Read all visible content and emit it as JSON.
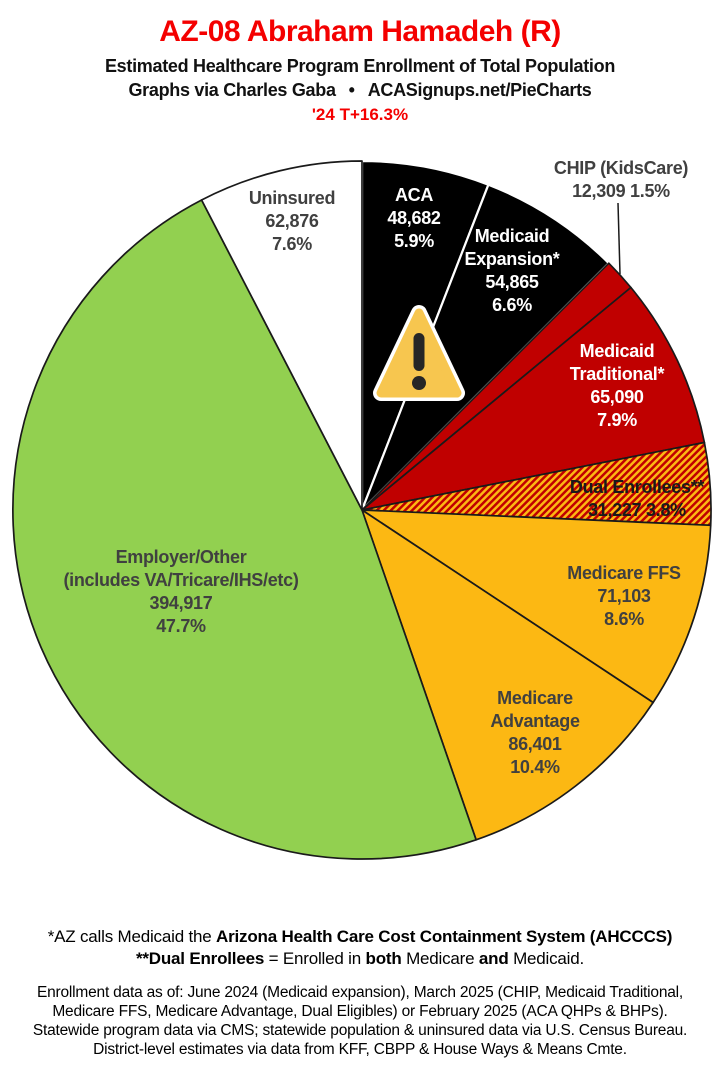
{
  "header": {
    "title": "AZ-08 Abraham Hamadeh (R)",
    "subtitle": "Estimated Healthcare Program Enrollment of Total Population",
    "credit_left": "Graphs via Charles Gaba",
    "credit_bullet": "•",
    "credit_right": "ACASignups.net/PieCharts",
    "change_note": "'24 T+16.3%"
  },
  "chart_data": {
    "type": "pie",
    "title": "Estimated Healthcare Program Enrollment of Total Population",
    "district": "AZ-08",
    "representative": "Abraham Hamadeh (R)",
    "start_angle_deg": 0,
    "direction": "clockwise",
    "hatch_colors": {
      "base": "#FCB813",
      "stripe": "#C00000"
    },
    "slices": [
      {
        "name": "aca",
        "label": "ACA",
        "value": 48682,
        "pct": 5.9,
        "fill": "#000000",
        "stroke": "#ffffff"
      },
      {
        "name": "medicaid-expansion",
        "label": "Medicaid Expansion*",
        "value": 54865,
        "pct": 6.6,
        "fill": "#000000",
        "stroke": "#ffffff"
      },
      {
        "name": "chip-kidscare",
        "label": "CHIP (KidsCare)",
        "value": 12309,
        "pct": 1.5,
        "fill": "#C00000",
        "stroke": "#1a1a1a"
      },
      {
        "name": "medicaid-traditional",
        "label": "Medicaid Traditional*",
        "value": 65090,
        "pct": 7.9,
        "fill": "#C00000",
        "stroke": "#1a1a1a"
      },
      {
        "name": "dual-enrollees",
        "label": "Dual Enrollees**",
        "value": 31227,
        "pct": 3.8,
        "fill": "hatch",
        "stroke": "#1a1a1a"
      },
      {
        "name": "medicare-ffs",
        "label": "Medicare FFS",
        "value": 71103,
        "pct": 8.6,
        "fill": "#FCB813",
        "stroke": "#1a1a1a"
      },
      {
        "name": "medicare-advantage",
        "label": "Medicare Advantage",
        "value": 86401,
        "pct": 10.4,
        "fill": "#FCB813",
        "stroke": "#1a1a1a"
      },
      {
        "name": "employer-other",
        "label": "Employer/Other (includes VA/Tricare/IHS/etc)",
        "value": 394917,
        "pct": 47.7,
        "fill": "#92D050",
        "stroke": "#1a1a1a"
      },
      {
        "name": "uninsured",
        "label": "Uninsured",
        "value": 62876,
        "pct": 7.6,
        "fill": "#FFFFFF",
        "stroke": "#1a1a1a"
      }
    ]
  },
  "labels": {
    "uninsured": {
      "lines": [
        "Uninsured",
        "62,876",
        "7.6%"
      ]
    },
    "aca": {
      "lines": [
        "ACA",
        "48,682",
        "5.9%"
      ]
    },
    "expansion": {
      "lines": [
        "Medicaid",
        "Expansion*",
        "54,865",
        "6.6%"
      ]
    },
    "chip": {
      "lines": [
        "CHIP (KidsCare)",
        "12,309 1.5%"
      ]
    },
    "traditional": {
      "lines": [
        "Medicaid",
        "Traditional*",
        "65,090",
        "7.9%"
      ]
    },
    "dual": {
      "lines": [
        "Dual Enrollees**",
        "31,227 3.8%"
      ]
    },
    "ffs": {
      "lines": [
        "Medicare FFS",
        "71,103",
        "8.6%"
      ]
    },
    "advantage": {
      "lines": [
        "Medicare",
        "Advantage",
        "86,401",
        "10.4%"
      ]
    },
    "employer": {
      "lines": [
        "Employer/Other",
        "(includes VA/Tricare/IHS/etc)",
        "394,917",
        "47.7%"
      ]
    }
  },
  "icons": {
    "warning": "exclamation-triangle"
  },
  "footnotes": {
    "fn1_normal": "*AZ calls Medicaid the ",
    "fn1_bold": "Arizona Health Care Cost Containment System (AHCCCS)",
    "fn2_bold1": "**Dual Enrollees",
    "fn2_normal1": " = Enrolled in ",
    "fn2_bold2": "both",
    "fn2_normal2": " Medicare ",
    "fn2_bold3": "and",
    "fn2_normal3": " Medicaid.",
    "source_lines": [
      "Enrollment data as of: June 2024 (Medicaid expansion), March 2025 (CHIP, Medicaid Traditional,",
      "Medicare FFS, Medicare Advantage, Dual Eligibles) or February 2025 (ACA QHPs & BHPs).",
      "Statewide program data via CMS; statewide population & uninsured data via U.S. Census Bureau.",
      "District-level estimates via data from KFF, CBPP & House Ways & Means Cmte."
    ]
  }
}
